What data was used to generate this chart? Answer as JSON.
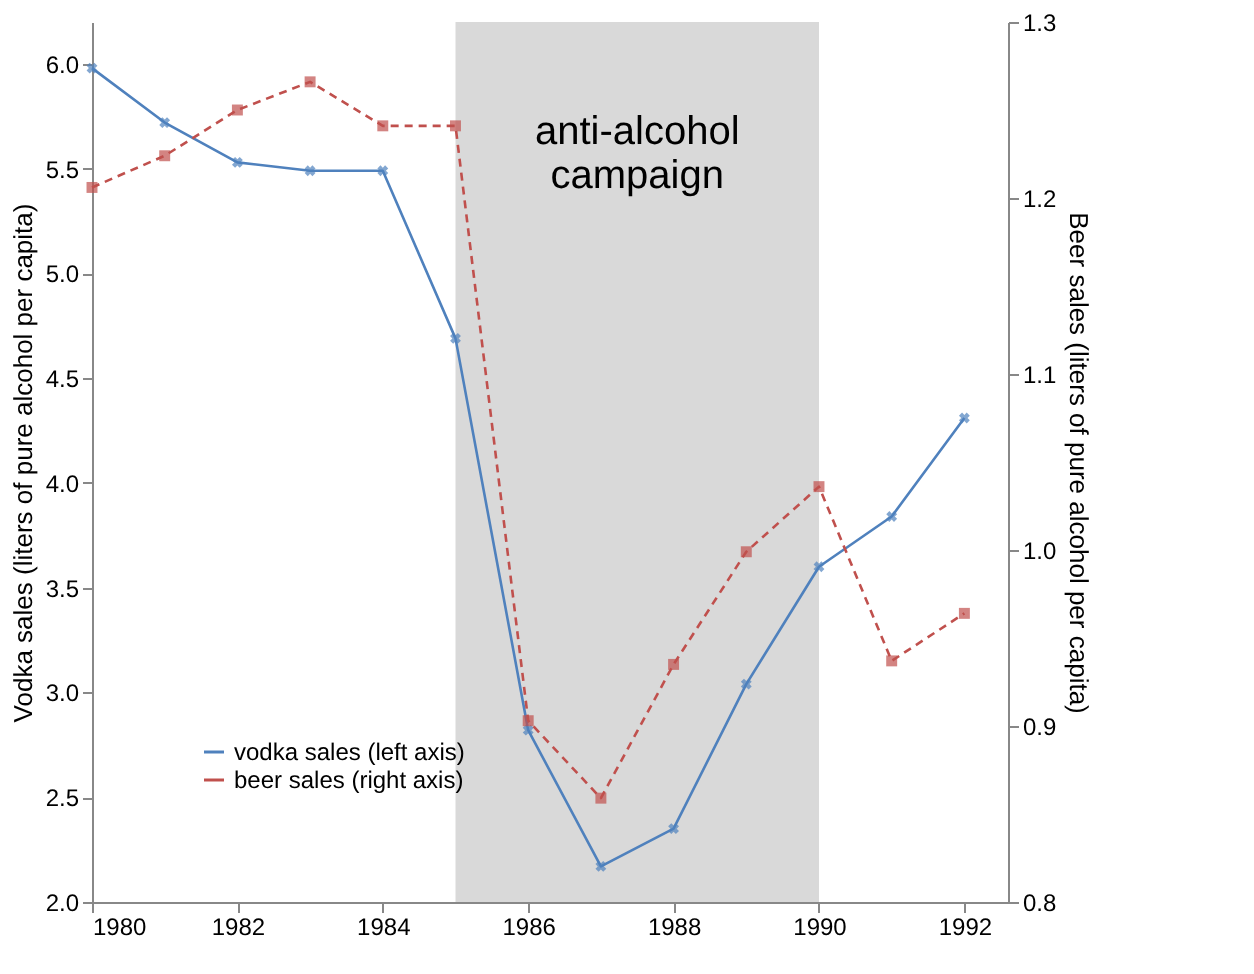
{
  "chart_data": {
    "type": "line",
    "x": [
      1980,
      1981,
      1982,
      1983,
      1984,
      1985,
      1986,
      1987,
      1988,
      1989,
      1990,
      1991,
      1992
    ],
    "series": [
      {
        "name": "vodka sales (left axis)",
        "color": "#4f81bd",
        "marker": "cross",
        "line_style": "solid",
        "values": [
          5.98,
          5.72,
          5.53,
          5.49,
          5.49,
          4.69,
          2.82,
          2.17,
          2.35,
          3.04,
          3.6,
          3.84,
          4.31
        ]
      },
      {
        "name": "beer sales (right axis)",
        "color": "#c0504d",
        "marker": "square",
        "line_style": "dashed",
        "axis": "y2",
        "values": [
          1.206,
          1.224,
          1.25,
          1.266,
          1.241,
          1.241,
          0.903,
          0.859,
          0.935,
          0.999,
          1.036,
          0.937,
          0.964
        ]
      }
    ],
    "ylabel": "Vodka sales  (liters of pure alcohol per capita)",
    "y2label": "Beer sales  (liters of pure alcohol per capita)",
    "xlim": [
      1980,
      1992.6
    ],
    "xticks": [
      1980,
      1982,
      1984,
      1986,
      1988,
      1990,
      1992
    ],
    "ylim": [
      2.0,
      6.2
    ],
    "yticks": [
      {
        "value": 2,
        "label": "2.0"
      },
      2.5,
      {
        "value": 3,
        "label": "3.0"
      },
      3.5,
      {
        "value": 4,
        "label": "4.0"
      },
      4.5,
      {
        "value": 5,
        "label": "5.0"
      },
      5.5,
      {
        "value": 6,
        "label": "6.0"
      }
    ],
    "y2lim": [
      0.8,
      1.3
    ],
    "y2ticks": [
      0.8,
      0.9,
      {
        "value": 1,
        "label": "1.0"
      },
      1.1,
      1.2,
      1.3
    ],
    "bands": [
      {
        "axis": "x",
        "from": 1985,
        "to": 1990,
        "label": "anti-alcohol campaign",
        "color": "#d9d9d9"
      }
    ],
    "legend": "bottom left",
    "grid": false
  }
}
